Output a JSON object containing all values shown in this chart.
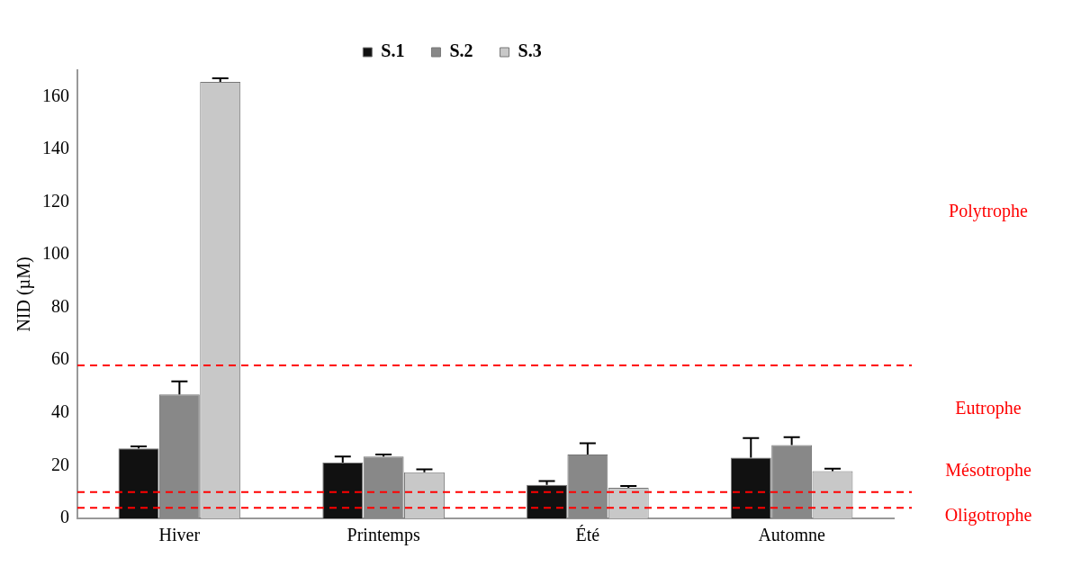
{
  "chart_data": {
    "type": "bar",
    "ylabel": "NID (µM)",
    "categories": [
      "Hiver",
      "Printemps",
      "Été",
      "Automne"
    ],
    "series": [
      {
        "name": "S.1",
        "color": "#111111",
        "values": [
          26.5,
          21.2,
          12.7,
          23
        ],
        "errors": [
          0.8,
          2.3,
          1.5,
          7.5
        ]
      },
      {
        "name": "S.2",
        "color": "#888888",
        "values": [
          47,
          23.5,
          24.2,
          27.8
        ],
        "errors": [
          5,
          0.7,
          4.3,
          3
        ]
      },
      {
        "name": "S.3",
        "color": "#c8c8c8",
        "values": [
          165.6,
          17.5,
          11.6,
          17.9
        ],
        "errors": [
          1.3,
          1.1,
          0.7,
          1
        ]
      }
    ],
    "ylim": [
      0,
      170
    ],
    "yticks": [
      0,
      20,
      40,
      60,
      80,
      100,
      120,
      140,
      160
    ],
    "grid": false,
    "legend": "top",
    "ref_lines": [
      {
        "axis": "y",
        "value": 58,
        "color": "#ff0000",
        "line_style": "dashed"
      },
      {
        "axis": "y",
        "value": 10,
        "color": "#ff0000",
        "line_style": "dashed"
      },
      {
        "axis": "y",
        "value": 4,
        "color": "#ff0000",
        "line_style": "dashed"
      }
    ],
    "annotations": [
      "Polytrophe",
      "Eutrophe",
      "Mésotrophe",
      "Oligotrophe"
    ]
  }
}
